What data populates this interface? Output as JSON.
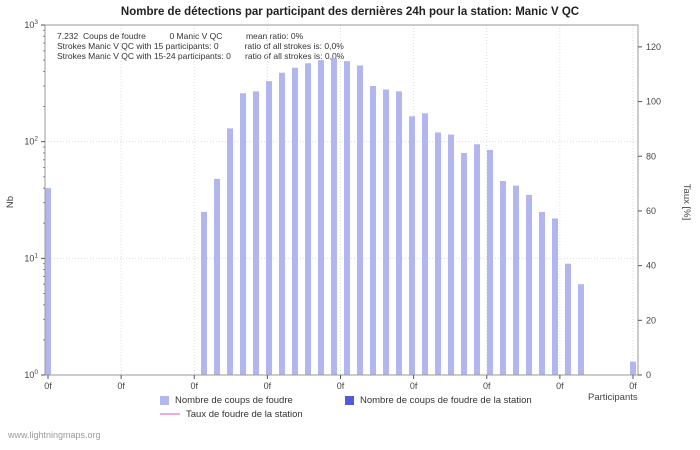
{
  "title": "Nombre de détections par participant des dernières 24h pour la station: Manic V QC",
  "annotation": {
    "line1": "7.232  Coups de foudre          0 Manic V QC          mean ratio: 0%",
    "line2": "Strokes Manic V QC with 15 participants: 0           ratio of all strokes is: 0,0%",
    "line3": "Strokes Manic V QC with 15-24 participants: 0      ratio of all strokes is: 0,0%"
  },
  "watermark": "www.lightningmaps.org",
  "chart_data": {
    "type": "bar",
    "title": "Nombre de détections par participant des dernières 24h pour la station: Manic V QC",
    "xlabel": "Participants",
    "ylabel_left": "Nb",
    "ylabel_right": "Taux [%]",
    "y_left_scale": "log",
    "y_left_range": [
      1,
      1000
    ],
    "y_left_ticks": [
      "10^0",
      "10^1",
      "10^2",
      "10^3"
    ],
    "y_right_range": [
      0,
      128
    ],
    "y_right_ticks": [
      0,
      20,
      40,
      60,
      80,
      100,
      120
    ],
    "x_tick_labels": [
      "0f",
      "0f",
      "0f",
      "0f",
      "0f",
      "0f",
      "0f",
      "0f",
      "0f"
    ],
    "grid": true,
    "bar_color": "#b2b6ee",
    "station_bar_color": "#5359d9",
    "rate_line_color": "#f2aade",
    "values": [
      40,
      0,
      0,
      0,
      0,
      0,
      0,
      0,
      0,
      0,
      0,
      0,
      25,
      48,
      130,
      260,
      270,
      330,
      390,
      430,
      470,
      500,
      520,
      490,
      450,
      300,
      280,
      270,
      165,
      175,
      120,
      115,
      80,
      95,
      85,
      46,
      42,
      35,
      25,
      22,
      9,
      6,
      0,
      0,
      0,
      1.3
    ],
    "legend": [
      {
        "label": "Nombre de coups de foudre",
        "color": "#b2b6ee",
        "type": "box"
      },
      {
        "label": "Nombre de coups de foudre de la station",
        "color": "#5359d9",
        "type": "box"
      },
      {
        "label": "Taux de foudre de la station",
        "color": "#f2aade",
        "type": "line"
      }
    ],
    "legend_position": "bottom"
  }
}
